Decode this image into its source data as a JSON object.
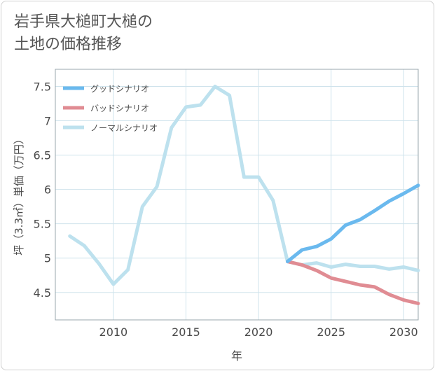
{
  "title": {
    "line1": "岩手県大槌町大槌の",
    "line2": "土地の価格推移"
  },
  "chart_data": {
    "type": "line",
    "title": "岩手県大槌町大槌の土地の価格推移",
    "xlabel": "年",
    "ylabel": "坪（3.3㎡）単価（万円）",
    "xlim": [
      2006,
      2031
    ],
    "ylim": [
      4.1,
      7.75
    ],
    "x_ticks": [
      2010,
      2015,
      2020,
      2025,
      2030
    ],
    "y_ticks": [
      4.5,
      5,
      5.5,
      6,
      6.5,
      7,
      7.5
    ],
    "grid": true,
    "legend_position": "top-left",
    "series": [
      {
        "name": "グッドシナリオ",
        "color": "#6ab9ee",
        "x": [
          2022,
          2023,
          2024,
          2025,
          2026,
          2027,
          2028,
          2029,
          2030,
          2031
        ],
        "values": [
          4.95,
          5.12,
          5.17,
          5.28,
          5.48,
          5.56,
          5.69,
          5.83,
          5.94,
          6.06
        ]
      },
      {
        "name": "バッドシナリオ",
        "color": "#e08c93",
        "x": [
          2022,
          2023,
          2024,
          2025,
          2026,
          2027,
          2028,
          2029,
          2030,
          2031
        ],
        "values": [
          4.95,
          4.9,
          4.82,
          4.71,
          4.66,
          4.61,
          4.58,
          4.47,
          4.39,
          4.34
        ]
      },
      {
        "name": "ノーマルシナリオ",
        "color": "#bde1ee",
        "x": [
          2007,
          2008,
          2009,
          2010,
          2011,
          2012,
          2013,
          2014,
          2015,
          2016,
          2017,
          2018,
          2019,
          2020,
          2021,
          2022,
          2023,
          2024,
          2025,
          2026,
          2027,
          2028,
          2029,
          2030,
          2031
        ],
        "values": [
          5.32,
          5.18,
          4.92,
          4.62,
          4.83,
          5.75,
          6.04,
          6.9,
          7.2,
          7.23,
          7.5,
          7.37,
          6.18,
          6.18,
          5.84,
          4.95,
          4.9,
          4.93,
          4.87,
          4.91,
          4.88,
          4.88,
          4.84,
          4.87,
          4.82
        ]
      }
    ]
  }
}
